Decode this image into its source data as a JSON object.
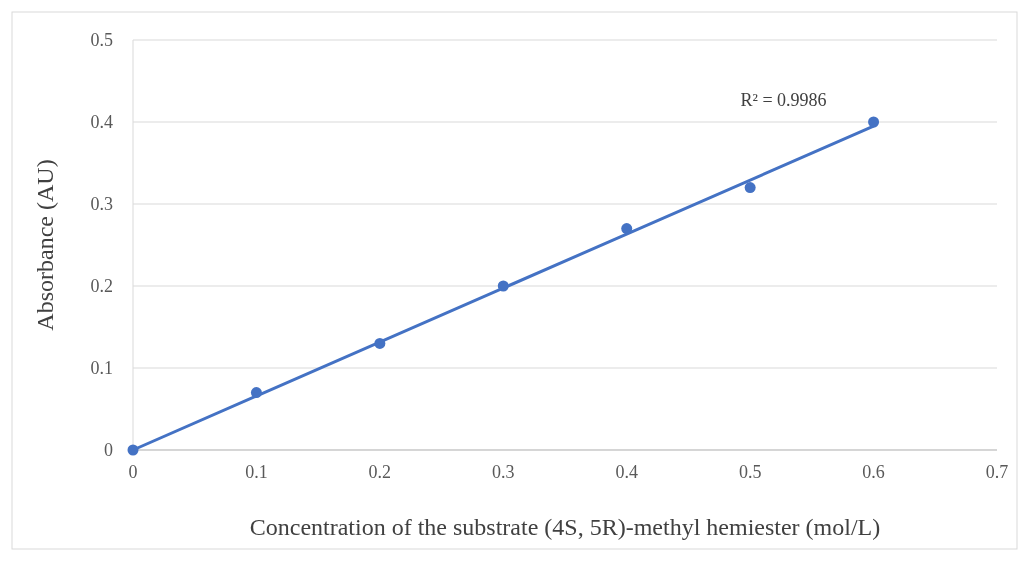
{
  "chart_data": {
    "type": "scatter",
    "xlabel": "Concentration of the substrate (4S, 5R)-methyl hemiester (mol/L)",
    "ylabel": "Absorbance (AU)",
    "x": [
      0,
      0.1,
      0.2,
      0.3,
      0.4,
      0.5,
      0.6
    ],
    "series": [
      {
        "color": "#4472c4",
        "values": [
          0,
          0.07,
          0.13,
          0.2,
          0.27,
          0.32,
          0.4
        ]
      },
      {
        "type": "line",
        "marker": "none",
        "color": "#4472c4",
        "x": [
          0,
          0.6
        ],
        "values": [
          0,
          0.395
        ]
      }
    ],
    "xlim": [
      0,
      0.7
    ],
    "xticks": [
      0,
      0.1,
      0.2,
      0.3,
      0.4,
      0.5,
      0.6,
      0.7
    ],
    "ylim": [
      0,
      0.5
    ],
    "yticks": [
      0,
      0.1,
      0.2,
      0.3,
      0.4,
      0.5
    ],
    "grid": "y",
    "marker": "circle",
    "line_style": "solid",
    "annotations": [
      "R² = 0.9986"
    ]
  }
}
